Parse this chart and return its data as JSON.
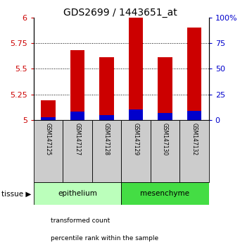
{
  "title": "GDS2699 / 1443651_at",
  "samples": [
    "GSM147125",
    "GSM147127",
    "GSM147128",
    "GSM147129",
    "GSM147130",
    "GSM147132"
  ],
  "transformed_counts": [
    5.19,
    5.68,
    5.61,
    6.0,
    5.61,
    5.9
  ],
  "percentile_ranks": [
    3,
    8,
    5,
    10,
    7,
    9
  ],
  "ylim_left": [
    5.0,
    6.0
  ],
  "ylim_right": [
    0,
    100
  ],
  "yticks_left": [
    5.0,
    5.25,
    5.5,
    5.75,
    6.0
  ],
  "yticks_right": [
    0,
    25,
    50,
    75,
    100
  ],
  "ytick_labels_left": [
    "5",
    "5.25",
    "5.5",
    "5.75",
    "6"
  ],
  "ytick_labels_right": [
    "0",
    "25",
    "50",
    "75",
    "100%"
  ],
  "grid_ticks": [
    5.25,
    5.5,
    5.75
  ],
  "bar_color_red": "#cc0000",
  "bar_color_blue": "#0000cc",
  "tissue_groups": [
    {
      "label": "epithelium",
      "n_samples": 3,
      "color": "#bbffbb"
    },
    {
      "label": "mesenchyme",
      "n_samples": 3,
      "color": "#44dd44"
    }
  ],
  "tissue_label": "tissue",
  "legend_items": [
    {
      "label": "transformed count",
      "color": "#cc0000"
    },
    {
      "label": "percentile rank within the sample",
      "color": "#0000cc"
    }
  ],
  "bar_width": 0.5,
  "background_color": "#ffffff",
  "label_box_color": "#cccccc",
  "base_value": 5.0,
  "percentile_scale_factor": 0.01
}
